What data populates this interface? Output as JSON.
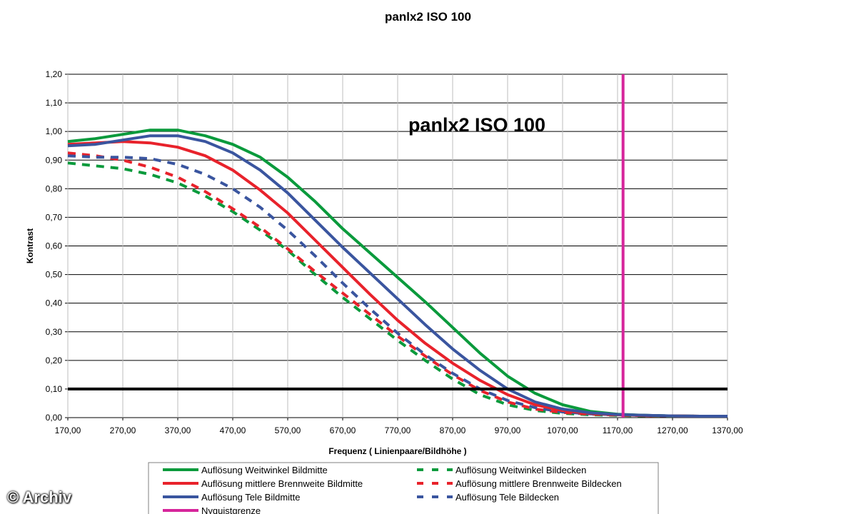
{
  "title": "panlx2 ISO 100",
  "watermark": "© Archiv",
  "chart_data": {
    "type": "line",
    "title": "panlx2 ISO 100",
    "inner_title": "panlx2 ISO 100",
    "xlabel": "Frequenz ( Linienpaare/Bildhöhe )",
    "ylabel": "Kontrast",
    "xlim": [
      170,
      1370
    ],
    "ylim": [
      0,
      1.2
    ],
    "grid": true,
    "x_tick_labels": [
      "170,00",
      "270,00",
      "370,00",
      "470,00",
      "570,00",
      "670,00",
      "770,00",
      "870,00",
      "970,00",
      "1070,00",
      "1170,00",
      "1270,00",
      "1370,00"
    ],
    "y_tick_labels": [
      "0,00",
      "0,10",
      "0,20",
      "0,30",
      "0,40",
      "0,50",
      "0,60",
      "0,70",
      "0,80",
      "0,90",
      "1,00",
      "1,10",
      "1,20"
    ],
    "legend_position": "bottom",
    "series": [
      {
        "name": "Auflösung Weitwinkel Bildmitte",
        "color": "#0a9a3c",
        "dashed": false,
        "points": [
          [
            170,
            0.965
          ],
          [
            220,
            0.975
          ],
          [
            270,
            0.99
          ],
          [
            320,
            1.005
          ],
          [
            370,
            1.005
          ],
          [
            420,
            0.985
          ],
          [
            470,
            0.955
          ],
          [
            520,
            0.91
          ],
          [
            570,
            0.84
          ],
          [
            620,
            0.755
          ],
          [
            670,
            0.66
          ],
          [
            720,
            0.575
          ],
          [
            770,
            0.49
          ],
          [
            820,
            0.405
          ],
          [
            870,
            0.315
          ],
          [
            920,
            0.225
          ],
          [
            970,
            0.145
          ],
          [
            1020,
            0.085
          ],
          [
            1070,
            0.045
          ],
          [
            1120,
            0.022
          ],
          [
            1170,
            0.012
          ],
          [
            1220,
            0.008
          ],
          [
            1270,
            0.006
          ],
          [
            1320,
            0.005
          ],
          [
            1370,
            0.005
          ]
        ]
      },
      {
        "name": "Auflösung mittlere Brennweite Bildmitte",
        "color": "#e8222b",
        "dashed": false,
        "points": [
          [
            170,
            0.955
          ],
          [
            220,
            0.96
          ],
          [
            270,
            0.965
          ],
          [
            320,
            0.96
          ],
          [
            370,
            0.945
          ],
          [
            420,
            0.915
          ],
          [
            470,
            0.865
          ],
          [
            520,
            0.795
          ],
          [
            570,
            0.715
          ],
          [
            620,
            0.62
          ],
          [
            670,
            0.525
          ],
          [
            720,
            0.43
          ],
          [
            770,
            0.34
          ],
          [
            820,
            0.26
          ],
          [
            870,
            0.19
          ],
          [
            920,
            0.13
          ],
          [
            970,
            0.08
          ],
          [
            1020,
            0.045
          ],
          [
            1070,
            0.025
          ],
          [
            1120,
            0.015
          ],
          [
            1170,
            0.01
          ],
          [
            1220,
            0.007
          ],
          [
            1270,
            0.006
          ],
          [
            1320,
            0.005
          ],
          [
            1370,
            0.005
          ]
        ]
      },
      {
        "name": "Auflösung Tele Bildmitte",
        "color": "#3a559f",
        "dashed": false,
        "points": [
          [
            170,
            0.95
          ],
          [
            220,
            0.955
          ],
          [
            270,
            0.97
          ],
          [
            320,
            0.985
          ],
          [
            370,
            0.985
          ],
          [
            420,
            0.965
          ],
          [
            470,
            0.925
          ],
          [
            520,
            0.865
          ],
          [
            570,
            0.785
          ],
          [
            620,
            0.69
          ],
          [
            670,
            0.595
          ],
          [
            720,
            0.505
          ],
          [
            770,
            0.415
          ],
          [
            820,
            0.325
          ],
          [
            870,
            0.24
          ],
          [
            920,
            0.165
          ],
          [
            970,
            0.1
          ],
          [
            1020,
            0.055
          ],
          [
            1070,
            0.03
          ],
          [
            1120,
            0.017
          ],
          [
            1170,
            0.011
          ],
          [
            1220,
            0.008
          ],
          [
            1270,
            0.006
          ],
          [
            1320,
            0.005
          ],
          [
            1370,
            0.005
          ]
        ]
      },
      {
        "name": "Nyquistgrenze",
        "color": "#d6259b",
        "dashed": false,
        "points": [
          [
            1180,
            0
          ],
          [
            1180,
            1.2
          ]
        ]
      },
      {
        "name": "Auflösung Weitwinkel Bildecken",
        "color": "#0a9a3c",
        "dashed": true,
        "points": [
          [
            170,
            0.89
          ],
          [
            220,
            0.88
          ],
          [
            270,
            0.87
          ],
          [
            320,
            0.85
          ],
          [
            370,
            0.82
          ],
          [
            420,
            0.775
          ],
          [
            470,
            0.72
          ],
          [
            520,
            0.655
          ],
          [
            570,
            0.585
          ],
          [
            620,
            0.5
          ],
          [
            670,
            0.42
          ],
          [
            720,
            0.345
          ],
          [
            770,
            0.27
          ],
          [
            820,
            0.2
          ],
          [
            870,
            0.135
          ],
          [
            920,
            0.08
          ],
          [
            970,
            0.045
          ],
          [
            1020,
            0.025
          ],
          [
            1070,
            0.015
          ],
          [
            1120,
            0.01
          ],
          [
            1170,
            0.008
          ],
          [
            1220,
            0.006
          ],
          [
            1270,
            0.005
          ],
          [
            1320,
            0.005
          ],
          [
            1370,
            0.005
          ]
        ]
      },
      {
        "name": "Auflösung mittlere Brennweite Bildecken",
        "color": "#e8222b",
        "dashed": true,
        "points": [
          [
            170,
            0.925
          ],
          [
            220,
            0.915
          ],
          [
            270,
            0.9
          ],
          [
            320,
            0.875
          ],
          [
            370,
            0.84
          ],
          [
            420,
            0.79
          ],
          [
            470,
            0.73
          ],
          [
            520,
            0.665
          ],
          [
            570,
            0.59
          ],
          [
            620,
            0.51
          ],
          [
            670,
            0.435
          ],
          [
            720,
            0.36
          ],
          [
            770,
            0.285
          ],
          [
            820,
            0.215
          ],
          [
            870,
            0.15
          ],
          [
            920,
            0.095
          ],
          [
            970,
            0.055
          ],
          [
            1020,
            0.03
          ],
          [
            1070,
            0.018
          ],
          [
            1120,
            0.012
          ],
          [
            1170,
            0.009
          ],
          [
            1220,
            0.007
          ],
          [
            1270,
            0.006
          ],
          [
            1320,
            0.005
          ],
          [
            1370,
            0.005
          ]
        ]
      },
      {
        "name": "Auflösung Tele Bildecken",
        "color": "#3a559f",
        "dashed": true,
        "points": [
          [
            170,
            0.915
          ],
          [
            220,
            0.91
          ],
          [
            270,
            0.91
          ],
          [
            320,
            0.905
          ],
          [
            370,
            0.885
          ],
          [
            420,
            0.85
          ],
          [
            470,
            0.8
          ],
          [
            520,
            0.735
          ],
          [
            570,
            0.655
          ],
          [
            620,
            0.565
          ],
          [
            670,
            0.47
          ],
          [
            720,
            0.38
          ],
          [
            770,
            0.295
          ],
          [
            820,
            0.22
          ],
          [
            870,
            0.155
          ],
          [
            920,
            0.1
          ],
          [
            970,
            0.06
          ],
          [
            1020,
            0.035
          ],
          [
            1070,
            0.02
          ],
          [
            1120,
            0.013
          ],
          [
            1170,
            0.01
          ],
          [
            1220,
            0.008
          ],
          [
            1270,
            0.006
          ],
          [
            1320,
            0.005
          ],
          [
            1370,
            0.005
          ]
        ]
      }
    ],
    "reference_lines": [
      {
        "axis": "y",
        "value": 0.1,
        "color": "#000000"
      }
    ]
  }
}
